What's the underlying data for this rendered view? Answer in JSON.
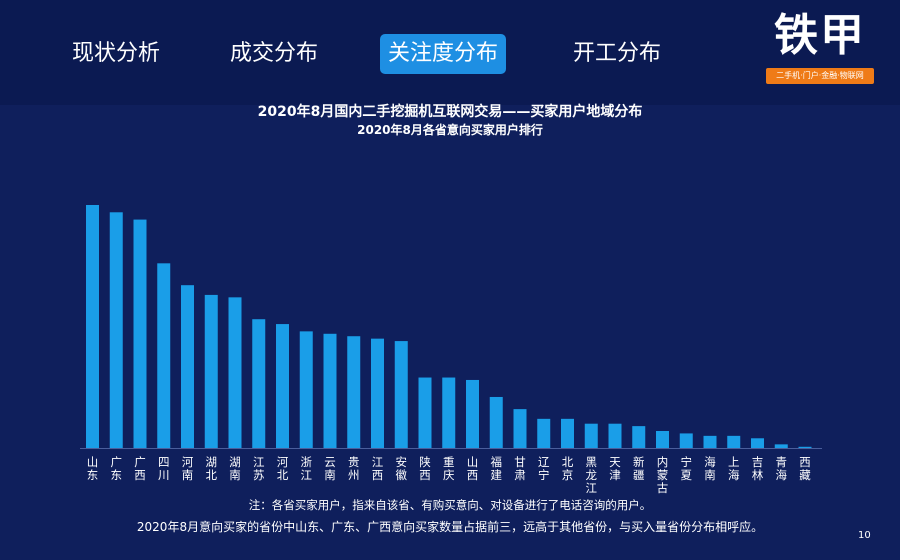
{
  "nav": {
    "tabs": [
      {
        "label": "现状分析",
        "active": false
      },
      {
        "label": "成交分布",
        "active": false
      },
      {
        "label": "关注度分布",
        "active": true
      },
      {
        "label": "开工分布",
        "active": false
      }
    ]
  },
  "logo": {
    "name": "铁甲",
    "tagline": "二手机·门户·金融·物联网",
    "tag_color": "#ef7b17"
  },
  "colors": {
    "background": "#0f1f5c",
    "header": "#0b1a52",
    "bar": "#1a9ee8",
    "active_tab": "#1e8fe3"
  },
  "chart_data": {
    "type": "bar",
    "title": "2020年8月国内二手挖掘机互联网交易——买家用户地域分布",
    "subtitle": "2020年8月各省意向买家用户排行",
    "categories": [
      "山东",
      "广东",
      "广西",
      "四川",
      "河南",
      "湖北",
      "湖南",
      "江苏",
      "河北",
      "浙江",
      "云南",
      "贵州",
      "江西",
      "安徽",
      "陕西",
      "重庆",
      "山西",
      "福建",
      "甘肃",
      "辽宁",
      "北京",
      "黑龙江",
      "天津",
      "新疆",
      "内蒙古",
      "宁夏",
      "海南",
      "上海",
      "吉林",
      "青海",
      "西藏"
    ],
    "values": [
      100,
      97,
      94,
      76,
      67,
      63,
      62,
      53,
      51,
      48,
      47,
      46,
      45,
      44,
      29,
      29,
      28,
      21,
      16,
      12,
      12,
      10,
      10,
      9,
      7,
      6,
      5,
      5,
      4,
      1.5,
      0.5
    ],
    "ylim": [
      0,
      100
    ],
    "grid": false,
    "legend": "none",
    "y_axis_labels": false
  },
  "footer": {
    "note": "注：各省买家用户，指来自该省、有购买意向、对设备进行了电话咨询的用户。",
    "conclusion": "2020年8月意向买家的省份中山东、广东、广西意向买家数量占据前三，远高于其他省份，与买入量省份分布相呼应。",
    "page_number": "10"
  }
}
